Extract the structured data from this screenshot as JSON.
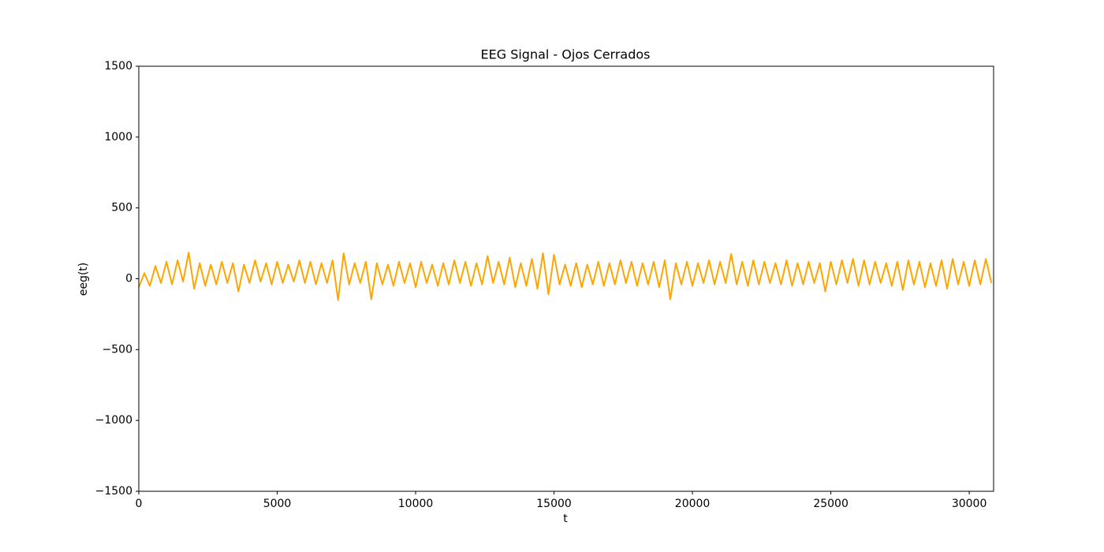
{
  "chart_data": {
    "type": "line",
    "title": "EEG Signal - Ojos Cerrados",
    "x_label": "t",
    "y_label": "eeg(t)",
    "color": "#ffa500",
    "xlim": [
      0,
      30880
    ],
    "ylim": [
      -1500,
      1500
    ],
    "xticks": [
      0,
      5000,
      10000,
      15000,
      20000,
      25000,
      30000
    ],
    "yticks": [
      {
        "value": -1500,
        "label": "−1500"
      },
      {
        "value": -1000,
        "label": "−1000"
      },
      {
        "value": -500,
        "label": "−500"
      },
      0,
      500,
      1000,
      1500
    ],
    "grid": false,
    "x": [
      0,
      200,
      400,
      600,
      800,
      1000,
      1200,
      1400,
      1600,
      1800,
      2000,
      2200,
      2400,
      2600,
      2800,
      3000,
      3200,
      3400,
      3600,
      3800,
      4000,
      4200,
      4400,
      4600,
      4800,
      5000,
      5200,
      5400,
      5600,
      5800,
      6000,
      6200,
      6400,
      6600,
      6800,
      7000,
      7200,
      7400,
      7600,
      7800,
      8000,
      8200,
      8400,
      8600,
      8800,
      9000,
      9200,
      9400,
      9600,
      9800,
      10000,
      10200,
      10400,
      10600,
      10800,
      11000,
      11200,
      11400,
      11600,
      11800,
      12000,
      12200,
      12400,
      12600,
      12800,
      13000,
      13200,
      13400,
      13600,
      13800,
      14000,
      14200,
      14400,
      14600,
      14800,
      15000,
      15200,
      15400,
      15600,
      15800,
      16000,
      16200,
      16400,
      16600,
      16800,
      17000,
      17200,
      17400,
      17600,
      17800,
      18000,
      18200,
      18400,
      18600,
      18800,
      19000,
      19200,
      19400,
      19600,
      19800,
      20000,
      20200,
      20400,
      20600,
      20800,
      21000,
      21200,
      21400,
      21600,
      21800,
      22000,
      22200,
      22400,
      22600,
      22800,
      23000,
      23200,
      23400,
      23600,
      23800,
      24000,
      24200,
      24400,
      24600,
      24800,
      25000,
      25200,
      25400,
      25600,
      25800,
      26000,
      26200,
      26400,
      26600,
      26800,
      27000,
      27200,
      27400,
      27600,
      27800,
      28000,
      28200,
      28400,
      28600,
      28800,
      29000,
      29200,
      29400,
      29600,
      29800,
      30000,
      30200,
      30400,
      30600,
      30800
    ],
    "values": [
      -60,
      40,
      -50,
      90,
      -30,
      120,
      -40,
      130,
      -20,
      185,
      -70,
      110,
      -50,
      100,
      -40,
      120,
      -30,
      110,
      -90,
      100,
      -30,
      130,
      -20,
      110,
      -40,
      120,
      -30,
      100,
      -20,
      130,
      -30,
      120,
      -40,
      110,
      -30,
      130,
      -150,
      180,
      -40,
      110,
      -30,
      120,
      -145,
      110,
      -40,
      100,
      -50,
      120,
      -30,
      110,
      -60,
      120,
      -30,
      100,
      -50,
      110,
      -40,
      130,
      -30,
      120,
      -50,
      110,
      -40,
      160,
      -30,
      120,
      -40,
      150,
      -60,
      110,
      -50,
      140,
      -70,
      180,
      -110,
      170,
      -40,
      100,
      -50,
      110,
      -60,
      100,
      -40,
      120,
      -50,
      110,
      -40,
      130,
      -30,
      120,
      -50,
      110,
      -40,
      120,
      -60,
      130,
      -145,
      110,
      -40,
      120,
      -50,
      110,
      -30,
      130,
      -40,
      120,
      -30,
      175,
      -40,
      120,
      -50,
      130,
      -40,
      120,
      -30,
      110,
      -40,
      130,
      -50,
      110,
      -40,
      120,
      -30,
      110,
      -90,
      120,
      -40,
      130,
      -30,
      140,
      -50,
      130,
      -40,
      120,
      -30,
      110,
      -50,
      120,
      -80,
      130,
      -40,
      120,
      -60,
      110,
      -50,
      130,
      -70,
      140,
      -40,
      120,
      -50,
      130,
      -40,
      140,
      -30
    ]
  }
}
